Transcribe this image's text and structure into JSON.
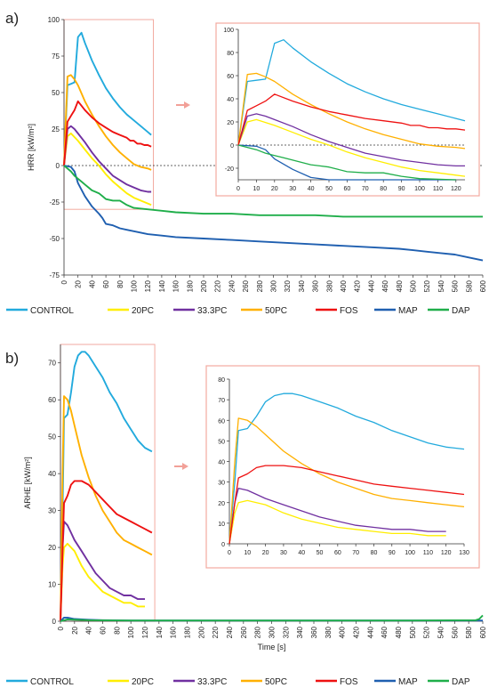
{
  "figure": {
    "panel_a": "a)",
    "panel_b": "b)"
  },
  "colors": {
    "CONTROL": "#22aadd",
    "20PC": "#ffee00",
    "33.3PC": "#7030a0",
    "50PC": "#ffb000",
    "FOS": "#ee1111",
    "MAP": "#1f5fb0",
    "DAP": "#1fae4a",
    "inset_border": "#f2aaa0",
    "arrow": "#f2a098"
  },
  "legend": [
    "CONTROL",
    "20PC",
    "33.3PC",
    "50PC",
    "FOS",
    "MAP",
    "DAP"
  ],
  "chart_data": [
    {
      "id": "a_main",
      "type": "line",
      "ylabel": "HRR [kW/m²]",
      "xlabel": "",
      "xlim": [
        0,
        600
      ],
      "ylim": [
        -75,
        100
      ],
      "xticks": [
        0,
        20,
        40,
        60,
        80,
        100,
        120,
        140,
        160,
        180,
        200,
        220,
        240,
        260,
        280,
        300,
        320,
        340,
        360,
        380,
        400,
        420,
        440,
        460,
        480,
        500,
        520,
        540,
        560,
        580,
        600
      ],
      "yticks": [
        100,
        75,
        50,
        25,
        0,
        -25,
        -50,
        -75
      ],
      "zero_line": "dashed",
      "series": [
        {
          "name": "CONTROL",
          "x": [
            0,
            5,
            10,
            15,
            20,
            25,
            30,
            40,
            50,
            60,
            70,
            80,
            90,
            100,
            110,
            120,
            125
          ],
          "y": [
            0,
            55,
            56,
            57,
            88,
            91,
            84,
            72,
            62,
            53,
            46,
            40,
            35,
            31,
            27,
            23,
            21
          ]
        },
        {
          "name": "20PC",
          "x": [
            0,
            5,
            10,
            20,
            30,
            40,
            50,
            60,
            70,
            80,
            90,
            100,
            110,
            120,
            125
          ],
          "y": [
            0,
            20,
            22,
            17,
            11,
            5,
            0,
            -6,
            -11,
            -15,
            -19,
            -22,
            -24,
            -26,
            -27
          ]
        },
        {
          "name": "33.3PC",
          "x": [
            0,
            5,
            10,
            15,
            20,
            30,
            40,
            50,
            60,
            70,
            80,
            90,
            100,
            110,
            120,
            125
          ],
          "y": [
            0,
            25,
            27,
            25,
            22,
            16,
            9,
            3,
            -2,
            -7,
            -10,
            -13,
            -15,
            -17,
            -18,
            -18
          ]
        },
        {
          "name": "50PC",
          "x": [
            0,
            5,
            10,
            15,
            20,
            30,
            40,
            50,
            60,
            70,
            80,
            90,
            100,
            110,
            120,
            125
          ],
          "y": [
            0,
            61,
            62,
            59,
            55,
            44,
            35,
            27,
            20,
            14,
            9,
            5,
            1,
            -1,
            -2,
            -3
          ]
        },
        {
          "name": "FOS",
          "x": [
            0,
            5,
            10,
            15,
            20,
            30,
            40,
            50,
            60,
            70,
            80,
            90,
            95,
            100,
            105,
            110,
            115,
            120,
            125
          ],
          "y": [
            0,
            30,
            34,
            38,
            44,
            38,
            33,
            29,
            26,
            23,
            21,
            19,
            17,
            17,
            15,
            15,
            14,
            14,
            13
          ]
        },
        {
          "name": "MAP",
          "x": [
            0,
            10,
            15,
            20,
            30,
            40,
            50,
            55,
            60,
            70,
            80,
            90,
            100,
            120,
            140,
            160,
            200,
            240,
            280,
            320,
            360,
            400,
            440,
            480,
            500,
            520,
            540,
            560,
            580,
            600
          ],
          "y": [
            0,
            -1,
            -4,
            -12,
            -21,
            -28,
            -33,
            -36,
            -40,
            -41,
            -43,
            -44,
            -45,
            -47,
            -48,
            -49,
            -50,
            -51,
            -52,
            -53,
            -54,
            -55,
            -56,
            -57,
            -58,
            -59,
            -60,
            -61,
            -63,
            -65
          ]
        },
        {
          "name": "DAP",
          "x": [
            0,
            10,
            15,
            20,
            25,
            30,
            35,
            40,
            45,
            50,
            55,
            60,
            70,
            80,
            90,
            100,
            120,
            140,
            160,
            200,
            240,
            280,
            320,
            360,
            400,
            440,
            480,
            520,
            560,
            600
          ],
          "y": [
            0,
            -4,
            -7,
            -9,
            -11,
            -13,
            -15,
            -17,
            -18,
            -19,
            -21,
            -23,
            -24,
            -24,
            -27,
            -29,
            -30,
            -31,
            -32,
            -33,
            -33,
            -34,
            -34,
            -34,
            -35,
            -35,
            -35,
            -35,
            -35,
            -35
          ]
        }
      ]
    },
    {
      "id": "a_inset",
      "type": "line",
      "xlim": [
        0,
        125
      ],
      "ylim": [
        -30,
        100
      ],
      "xticks": [
        0,
        10,
        20,
        30,
        40,
        50,
        60,
        70,
        80,
        90,
        100,
        110,
        120
      ],
      "yticks": [
        100,
        80,
        60,
        40,
        20,
        0,
        -20
      ],
      "zero_line": "dashed",
      "series_ref": "a_main"
    },
    {
      "id": "b_main",
      "type": "line",
      "ylabel": "ARHE [kW/m²]",
      "xlabel": "Time [s]",
      "xlim": [
        0,
        600
      ],
      "ylim": [
        0,
        75
      ],
      "xticks": [
        0,
        20,
        40,
        60,
        80,
        100,
        120,
        140,
        160,
        180,
        200,
        220,
        240,
        260,
        280,
        300,
        320,
        340,
        360,
        380,
        400,
        420,
        440,
        460,
        480,
        500,
        520,
        540,
        560,
        580,
        600
      ],
      "yticks": [
        70,
        60,
        50,
        40,
        30,
        20,
        10,
        0
      ],
      "series": [
        {
          "name": "CONTROL",
          "x": [
            0,
            3,
            5,
            10,
            15,
            20,
            25,
            30,
            35,
            40,
            50,
            60,
            70,
            80,
            90,
            100,
            110,
            120,
            130
          ],
          "y": [
            0,
            30,
            55,
            56,
            62,
            69,
            72,
            73,
            73,
            72,
            69,
            66,
            62,
            59,
            55,
            52,
            49,
            47,
            46
          ]
        },
        {
          "name": "20PC",
          "x": [
            0,
            3,
            5,
            10,
            15,
            20,
            30,
            40,
            50,
            60,
            70,
            80,
            90,
            100,
            110,
            120
          ],
          "y": [
            0,
            15,
            20,
            21,
            20,
            19,
            15,
            12,
            10,
            8,
            7,
            6,
            5,
            5,
            4,
            4
          ]
        },
        {
          "name": "33.3PC",
          "x": [
            0,
            3,
            5,
            10,
            15,
            20,
            30,
            40,
            50,
            60,
            70,
            80,
            90,
            100,
            110,
            120
          ],
          "y": [
            0,
            20,
            27,
            26,
            24,
            22,
            19,
            16,
            13,
            11,
            9,
            8,
            7,
            7,
            6,
            6
          ]
        },
        {
          "name": "50PC",
          "x": [
            0,
            3,
            5,
            10,
            15,
            20,
            30,
            40,
            50,
            60,
            70,
            80,
            90,
            100,
            110,
            120,
            130
          ],
          "y": [
            0,
            40,
            61,
            60,
            57,
            53,
            45,
            39,
            34,
            30,
            27,
            24,
            22,
            21,
            20,
            19,
            18
          ]
        },
        {
          "name": "FOS",
          "x": [
            0,
            3,
            5,
            10,
            15,
            20,
            25,
            30,
            40,
            50,
            60,
            70,
            80,
            90,
            100,
            110,
            120,
            130
          ],
          "y": [
            0,
            20,
            32,
            34,
            37,
            38,
            38,
            38,
            37,
            35,
            33,
            31,
            29,
            28,
            27,
            26,
            25,
            24
          ]
        },
        {
          "name": "MAP",
          "x": [
            0,
            5,
            10,
            20,
            40,
            60,
            100,
            200,
            300,
            400,
            500,
            600
          ],
          "y": [
            0,
            1,
            1,
            0.6,
            0.4,
            0.3,
            0.2,
            0.2,
            0.2,
            0.2,
            0.2,
            0.2
          ]
        },
        {
          "name": "DAP",
          "x": [
            0,
            10,
            20,
            40,
            100,
            200,
            300,
            400,
            500,
            590,
            595,
            600
          ],
          "y": [
            0,
            0.5,
            0.4,
            0.3,
            0.2,
            0.2,
            0.2,
            0.2,
            0.2,
            0.3,
            0.6,
            1.6
          ]
        }
      ]
    },
    {
      "id": "b_inset",
      "type": "line",
      "xlim": [
        0,
        130
      ],
      "ylim": [
        0,
        80
      ],
      "xticks": [
        0,
        10,
        20,
        30,
        40,
        50,
        60,
        70,
        80,
        90,
        100,
        110,
        120,
        130
      ],
      "yticks": [
        80,
        70,
        60,
        50,
        40,
        30,
        20,
        10,
        0
      ],
      "series_ref": "b_main",
      "series_filter": [
        "CONTROL",
        "20PC",
        "33.3PC",
        "50PC",
        "FOS"
      ]
    }
  ]
}
